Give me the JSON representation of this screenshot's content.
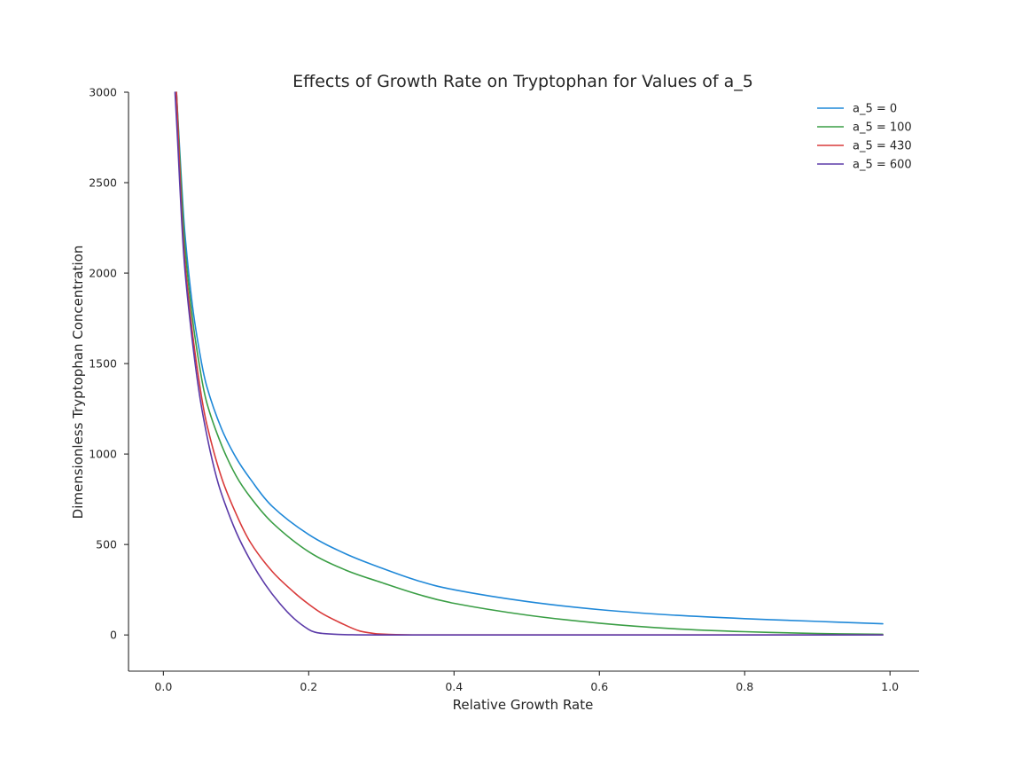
{
  "chart_data": {
    "type": "line",
    "title": "Effects of Growth Rate on Tryptophan for Values of a_5",
    "xlabel": "Relative Growth Rate",
    "ylabel": "Dimensionless Tryptophan Concentration",
    "xlim": [
      -0.048,
      1.04
    ],
    "ylim": [
      -200,
      3000
    ],
    "xticks": [
      0.0,
      0.2,
      0.4,
      0.6,
      0.8,
      1.0
    ],
    "xtick_labels": [
      "0.0",
      "0.2",
      "0.4",
      "0.6",
      "0.8",
      "1.0"
    ],
    "yticks": [
      0,
      500,
      1000,
      1500,
      2000,
      2500,
      3000
    ],
    "ytick_labels": [
      "0",
      "500",
      "1000",
      "1500",
      "2000",
      "2500",
      "3000"
    ],
    "grid": false,
    "legend_position": "top-right",
    "series": [
      {
        "name": "a_5 = 0",
        "color": "#1f88d8",
        "x": [
          0.018,
          0.025,
          0.03,
          0.04,
          0.05,
          0.06,
          0.08,
          0.1,
          0.12,
          0.15,
          0.2,
          0.25,
          0.3,
          0.35,
          0.4,
          0.5,
          0.6,
          0.7,
          0.8,
          0.9,
          0.99
        ],
        "y": [
          3000,
          2500,
          2200,
          1820,
          1560,
          1370,
          1140,
          980,
          860,
          710,
          555,
          450,
          370,
          300,
          250,
          185,
          140,
          110,
          90,
          75,
          62
        ]
      },
      {
        "name": "a_5 = 100",
        "color": "#3a9e45",
        "x": [
          0.018,
          0.025,
          0.03,
          0.04,
          0.05,
          0.06,
          0.08,
          0.1,
          0.12,
          0.15,
          0.2,
          0.25,
          0.3,
          0.35,
          0.4,
          0.5,
          0.6,
          0.7,
          0.8,
          0.9,
          0.99
        ],
        "y": [
          3000,
          2450,
          2130,
          1750,
          1480,
          1280,
          1050,
          880,
          760,
          620,
          460,
          360,
          290,
          225,
          175,
          110,
          65,
          35,
          18,
          8,
          4
        ]
      },
      {
        "name": "a_5 = 430",
        "color": "#d93a3a",
        "x": [
          0.018,
          0.025,
          0.03,
          0.04,
          0.05,
          0.06,
          0.08,
          0.1,
          0.12,
          0.15,
          0.18,
          0.2,
          0.22,
          0.25,
          0.27,
          0.29,
          0.3,
          0.32,
          0.35,
          0.4,
          0.6,
          0.8,
          0.99
        ],
        "y": [
          3000,
          2350,
          2050,
          1670,
          1380,
          1160,
          870,
          670,
          510,
          350,
          235,
          170,
          115,
          55,
          22,
          8,
          5,
          2,
          0,
          0,
          0,
          0,
          0
        ]
      },
      {
        "name": "a_5 = 600",
        "color": "#5b3aa8",
        "x": [
          0.016,
          0.02,
          0.025,
          0.03,
          0.04,
          0.05,
          0.06,
          0.07,
          0.08,
          0.1,
          0.12,
          0.14,
          0.16,
          0.18,
          0.2,
          0.21,
          0.22,
          0.24,
          0.26,
          0.3,
          0.4,
          0.6,
          0.8,
          0.99
        ],
        "y": [
          3000,
          2700,
          2300,
          2000,
          1620,
          1320,
          1100,
          920,
          780,
          570,
          410,
          280,
          175,
          90,
          30,
          14,
          8,
          3,
          1,
          0,
          0,
          0,
          0,
          0
        ]
      }
    ]
  }
}
